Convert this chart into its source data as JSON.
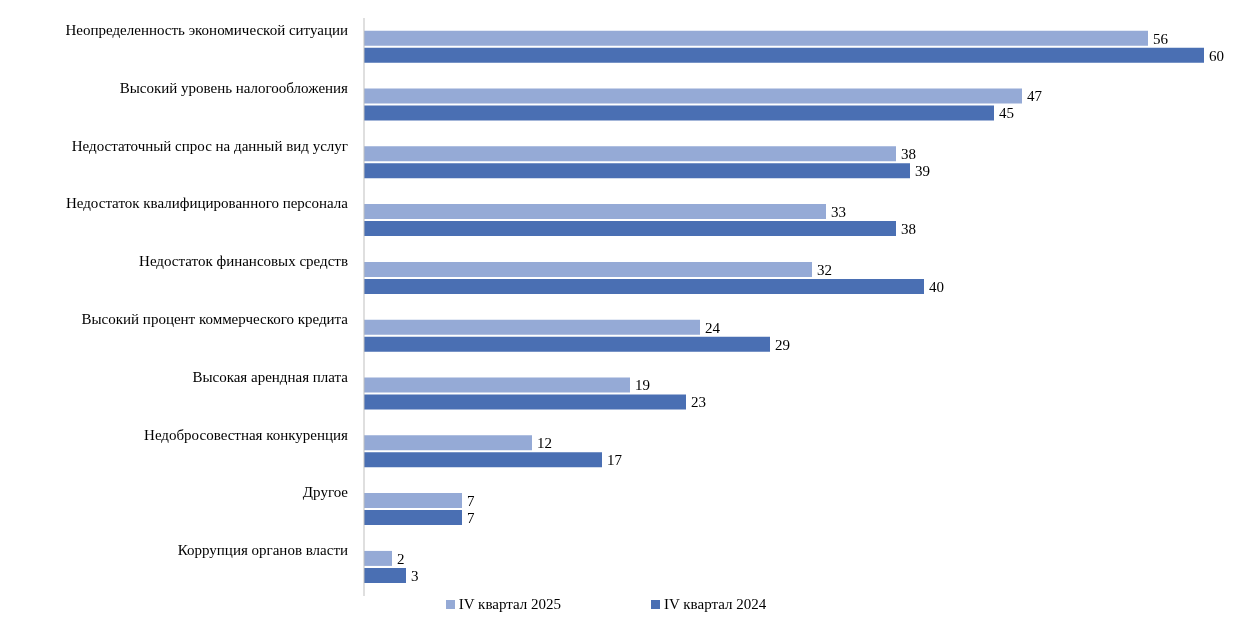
{
  "chart_data": {
    "type": "bar",
    "orientation": "horizontal",
    "categories": [
      "Неопределенность экономической ситуации",
      "Высокий уровень налогообложения",
      "Недостаточный спрос на данный вид услуг",
      "Недостаток квалифицированного персонала",
      "Недостаток финансовых средств",
      "Высокий процент коммерческого кредита",
      "Высокая арендная плата",
      "Недобросовестная конкуренция",
      "Другое",
      "Коррупция органов власти"
    ],
    "series": [
      {
        "name": "IV квартал 2025",
        "color": "#95aad6",
        "values": [
          56,
          47,
          38,
          33,
          32,
          24,
          19,
          12,
          7,
          2
        ]
      },
      {
        "name": "IV квартал 2024",
        "color": "#4a6fb3",
        "values": [
          60,
          45,
          39,
          38,
          40,
          29,
          23,
          17,
          7,
          3
        ]
      }
    ],
    "data_labels": true,
    "legend": "bottom"
  }
}
